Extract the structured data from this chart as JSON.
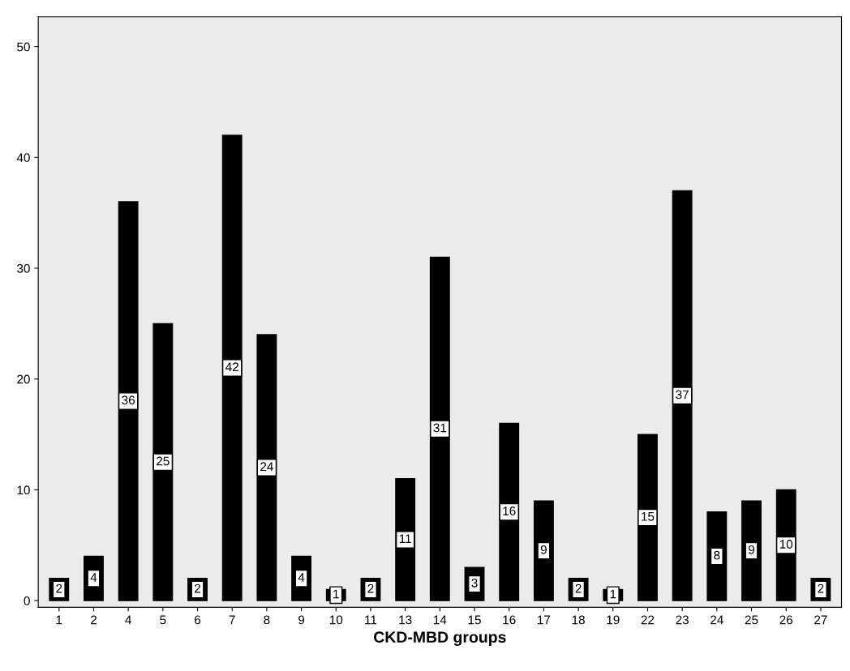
{
  "chart_data": {
    "type": "bar",
    "xlabel": "CKD-MBD groups",
    "categories": [
      "1",
      "2",
      "4",
      "5",
      "6",
      "7",
      "8",
      "9",
      "10",
      "11",
      "13",
      "14",
      "15",
      "16",
      "17",
      "18",
      "19",
      "22",
      "23",
      "24",
      "25",
      "26",
      "27"
    ],
    "values": [
      2,
      4,
      36,
      25,
      2,
      42,
      24,
      4,
      1,
      2,
      11,
      31,
      3,
      16,
      9,
      2,
      1,
      15,
      37,
      8,
      9,
      10,
      2
    ],
    "color": "#000000",
    "data_labels": true,
    "ylim": [
      -0.6,
      52.7
    ],
    "yticks": [
      0,
      10,
      20,
      30,
      40,
      50
    ],
    "grid": false,
    "legend": false
  }
}
